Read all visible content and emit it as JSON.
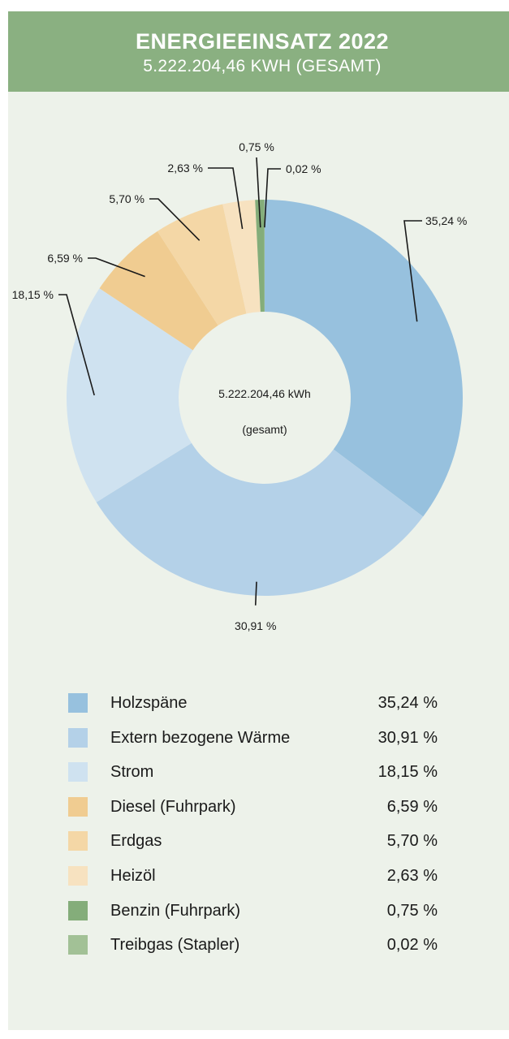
{
  "header": {
    "title": "ENERGIEEINSATZ 2022",
    "subtitle": "5.222.204,46 KWH (GESAMT)"
  },
  "center": {
    "line1": "5.222.204,46 kWh",
    "line2": "(gesamt)"
  },
  "chart_data": {
    "type": "pie",
    "title": "ENERGIEEINSATZ 2022",
    "subtitle": "5.222.204,46 KWH (GESAMT)",
    "total": "5.222.204,46 kWh",
    "categories": [
      "Holzspäne",
      "Extern bezogene Wärme",
      "Strom",
      "Diesel (Fuhrpark)",
      "Erdgas",
      "Heizöl",
      "Benzin (Fuhrpark)",
      "Treibgas (Stapler)"
    ],
    "values": [
      35.24,
      30.91,
      18.15,
      6.59,
      5.7,
      2.63,
      0.75,
      0.02
    ],
    "slice_labels": [
      "35,24 %",
      "30,91 %",
      "18,15 %",
      "6,59 %",
      "5,70 %",
      "2,63 %",
      "0,75 %",
      "0,02 %"
    ],
    "colors": [
      "#97c1de",
      "#b4d1e8",
      "#cfe2f0",
      "#f0cc91",
      "#f4d7a6",
      "#f7e2c0",
      "#84ad7a",
      "#a2c196"
    ],
    "legend_position": "bottom"
  },
  "legend": {
    "items": [
      {
        "name": "Holzspäne",
        "value": "35,24 %"
      },
      {
        "name": "Extern bezogene Wärme",
        "value": "30,91 %"
      },
      {
        "name": "Strom",
        "value": "18,15 %"
      },
      {
        "name": "Diesel (Fuhrpark)",
        "value": "6,59 %"
      },
      {
        "name": "Erdgas",
        "value": "5,70 %"
      },
      {
        "name": "Heizöl",
        "value": "2,63 %"
      },
      {
        "name": "Benzin (Fuhrpark)",
        "value": "0,75 %"
      },
      {
        "name": "Treibgas (Stapler)",
        "value": "0,02 %"
      }
    ]
  }
}
